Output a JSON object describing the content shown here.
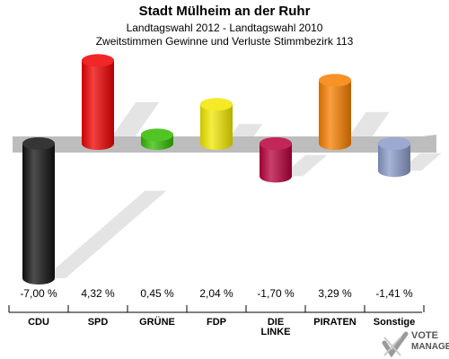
{
  "chart_data": {
    "type": "bar",
    "title": "Stadt Mülheim an der Ruhr",
    "subtitle": "Landtagswahl 2012 - Landtagswahl 2010",
    "subtitle2": "Zweitstimmen Gewinne und Verluste Stimmbezirk 113",
    "categories": [
      "CDU",
      "SPD",
      "GRÜNE",
      "FDP",
      "DIE LINKE",
      "PIRATEN",
      "Sonstige"
    ],
    "category_lines": [
      [
        "CDU"
      ],
      [
        "SPD"
      ],
      [
        "GRÜNE"
      ],
      [
        "FDP"
      ],
      [
        "DIE",
        "LINKE"
      ],
      [
        "PIRATEN"
      ],
      [
        "Sonstige"
      ]
    ],
    "values": [
      -7.0,
      4.32,
      0.45,
      2.04,
      -1.7,
      3.29,
      -1.41
    ],
    "value_labels": [
      "-7,00 %",
      "4,32 %",
      "0,45 %",
      "2,04 %",
      "-1,70 %",
      "3,29 %",
      "-1,41 %"
    ],
    "colors": [
      "#111111",
      "#ee0000",
      "#33bb00",
      "#f2e800",
      "#b8003c",
      "#f57f00",
      "#8a9ac8"
    ],
    "ylim": [
      -7.0,
      4.32
    ]
  },
  "logo": {
    "line1": "VOTE",
    "line2": "MANAGER"
  }
}
